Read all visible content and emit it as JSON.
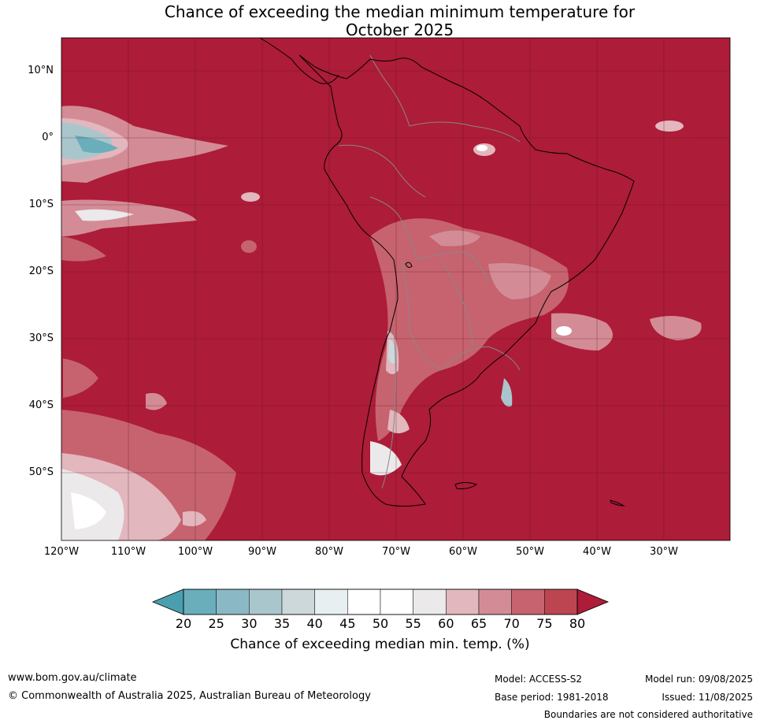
{
  "title_line1": "Chance of exceeding the median minimum temperature for",
  "title_line2": "October 2025",
  "lat_labels": [
    "10°N",
    "0°",
    "10°S",
    "20°S",
    "30°S",
    "40°S",
    "50°S"
  ],
  "lon_labels": [
    "120°W",
    "110°W",
    "100°W",
    "90°W",
    "80°W",
    "70°W",
    "60°W",
    "50°W",
    "40°W",
    "30°W"
  ],
  "colorbar": {
    "ticks": [
      "20",
      "25",
      "30",
      "35",
      "40",
      "45",
      "50",
      "55",
      "60",
      "65",
      "70",
      "75",
      "80"
    ],
    "under_color": "#4a9fae",
    "over_color": "#ad1c38",
    "colors": [
      "#6aaebb",
      "#8bb8c5",
      "#aac6cd",
      "#cdd8db",
      "#e8eff1",
      "#ffffff",
      "#ffffff",
      "#ebe9ea",
      "#e2b7bd",
      "#d38c96",
      "#c6636f",
      "#bd4451"
    ],
    "caption": "Chance of exceeding median min. temp. (%)"
  },
  "map": {
    "background_color": "#ad1c38",
    "coast_color": "#000000",
    "border_color": "#888888"
  },
  "footer": {
    "website": "www.bom.gov.au/climate",
    "copyright": "© Commonwealth of Australia 2025, Australian Bureau of Meteorology",
    "model": "Model: ACCESS-S2",
    "base_period": "Base period: 1981-2018",
    "model_run": "Model run: 09/08/2025",
    "issued": "Issued: 11/08/2025",
    "disclaimer": "Boundaries are not considered authoritative"
  }
}
